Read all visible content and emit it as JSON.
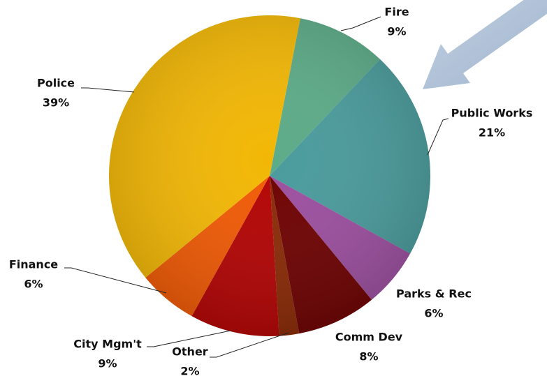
{
  "chart_data": {
    "type": "pie",
    "categories": [
      "Fire",
      "Public Works",
      "Parks & Rec",
      "Comm Dev",
      "Other",
      "City Mgm't",
      "Finance",
      "Police"
    ],
    "values": [
      9,
      21,
      6,
      8,
      2,
      9,
      6,
      39
    ],
    "value_labels": [
      "9%",
      "21%",
      "6%",
      "8%",
      "2%",
      "9%",
      "6%",
      "39%"
    ],
    "colors": [
      "#5cab88",
      "#4a9b9c",
      "#9c4f9f",
      "#6e0202",
      "#8a2a06",
      "#b30404",
      "#f05a05",
      "#f2b705"
    ]
  }
}
